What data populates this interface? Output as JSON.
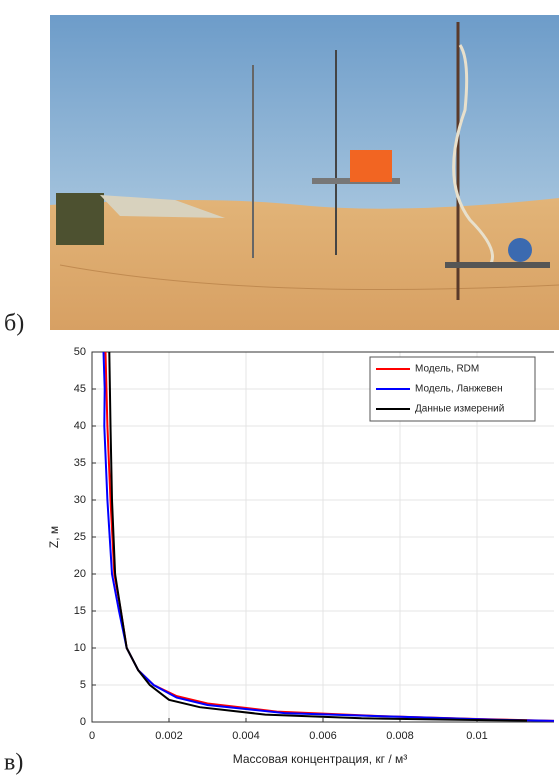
{
  "panel_labels": [
    "б)",
    "в)"
  ],
  "chart_data": {
    "type": "line",
    "xlabel": "Массовая концентрация, кг / м³",
    "ylabel": "Z, м",
    "xlim": [
      0,
      0.012
    ],
    "ylim": [
      0,
      50
    ],
    "xticks": [
      0,
      0.002,
      0.004,
      0.006,
      0.008,
      0.01
    ],
    "yticks": [
      0,
      5,
      10,
      15,
      20,
      25,
      30,
      35,
      40,
      45,
      50
    ],
    "grid": true,
    "legend": "upper right",
    "series": [
      {
        "name": "Модель, RDM",
        "color": "#ff0000",
        "x": [
          0.00035,
          0.0004,
          0.00048,
          0.00058,
          0.00075,
          0.0009,
          0.0012,
          0.0016,
          0.0022,
          0.003,
          0.0048,
          0.0075,
          0.01,
          0.012
        ],
        "values": [
          50,
          40,
          30,
          20,
          15,
          10,
          7,
          5,
          3.5,
          2.5,
          1.4,
          0.8,
          0.4,
          0.15
        ]
      },
      {
        "name": "Модель, Ланжевен",
        "color": "#0000ff",
        "x": [
          0.0003,
          0.00033,
          0.00032,
          0.0004,
          0.00052,
          0.0007,
          0.0009,
          0.0012,
          0.0016,
          0.0022,
          0.003,
          0.005,
          0.008,
          0.0105,
          0.012
        ],
        "values": [
          50,
          45,
          40,
          30,
          20,
          15,
          10,
          7,
          5,
          3.3,
          2.3,
          1.2,
          0.7,
          0.3,
          0.15
        ]
      },
      {
        "name": "Данные измерений",
        "color": "#000000",
        "x": [
          0.00045,
          0.00048,
          0.00052,
          0.0006,
          0.00075,
          0.0009,
          0.0012,
          0.0015,
          0.002,
          0.0028,
          0.0045,
          0.007,
          0.0102,
          0.0113
        ],
        "values": [
          50,
          40,
          30,
          20,
          15,
          10,
          7,
          5,
          3,
          2,
          1,
          0.5,
          0.25,
          0.2
        ]
      }
    ]
  }
}
